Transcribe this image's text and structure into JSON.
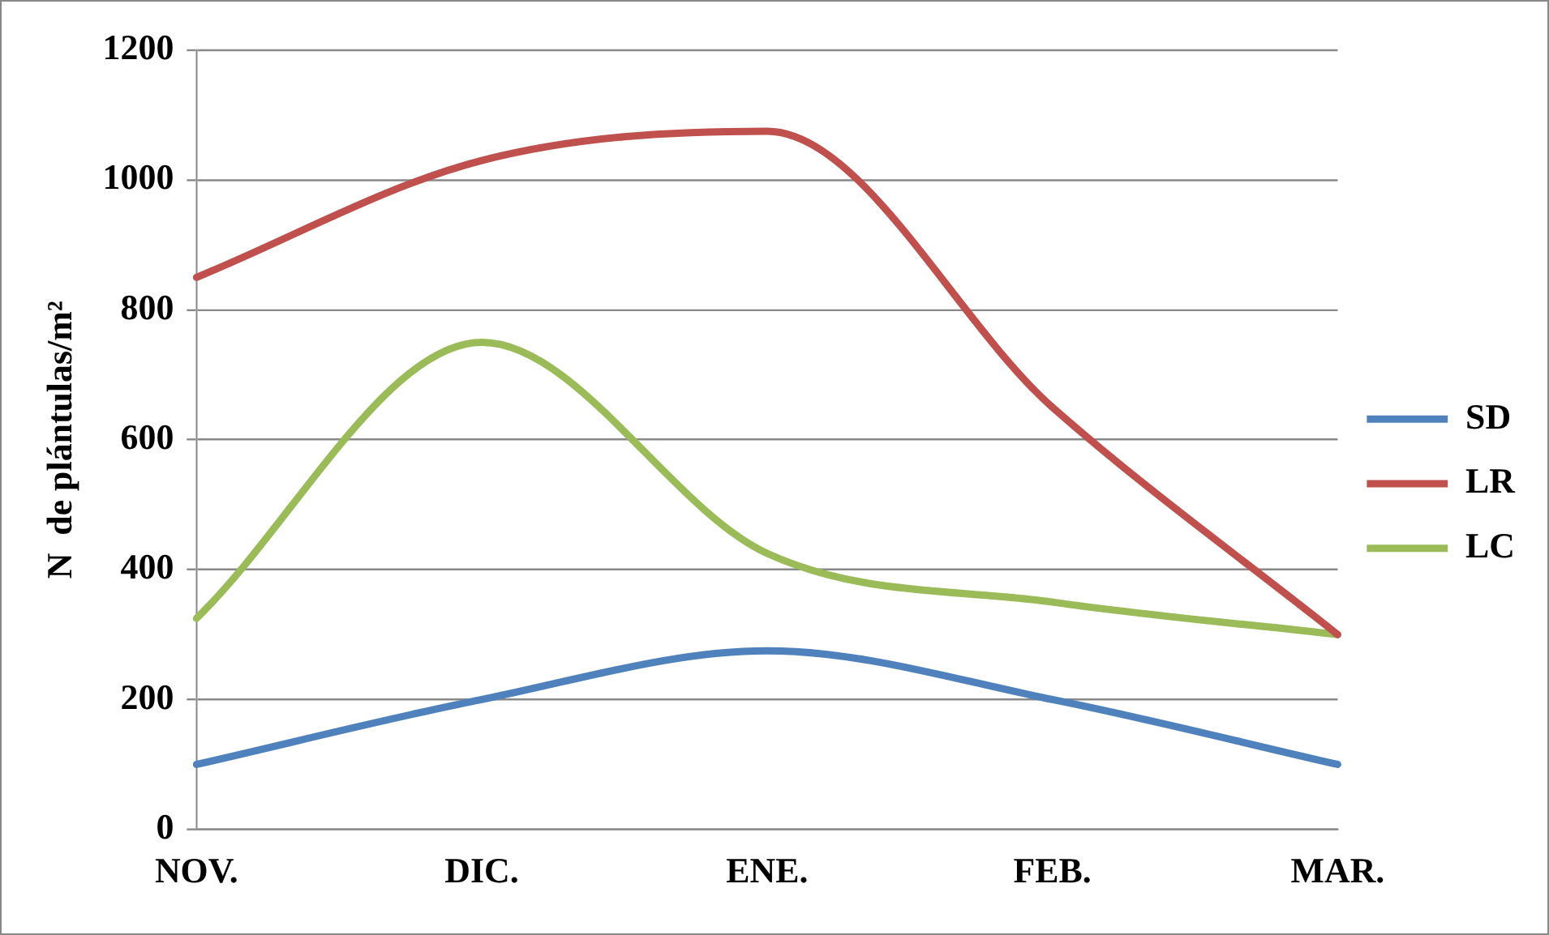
{
  "chart_data": {
    "type": "line",
    "ylabel": "N  de plántulas/m²",
    "categories": [
      "NOV.",
      "DIC.",
      "ENE.",
      "FEB.",
      "MAR."
    ],
    "series": [
      {
        "name": "SD",
        "color": "#4f81bd",
        "values": [
          100,
          200,
          275,
          200,
          100
        ]
      },
      {
        "name": "LR",
        "color": "#c0504d",
        "values": [
          850,
          1030,
          1075,
          650,
          300
        ]
      },
      {
        "name": "LC",
        "color": "#9bbb59",
        "values": [
          325,
          750,
          425,
          350,
          300
        ]
      }
    ],
    "ylim": [
      0,
      1200
    ],
    "yticks": [
      0,
      200,
      400,
      600,
      800,
      1000,
      1200
    ],
    "grid": "y",
    "legend": "right",
    "marker": "none",
    "line_style": "solid"
  }
}
